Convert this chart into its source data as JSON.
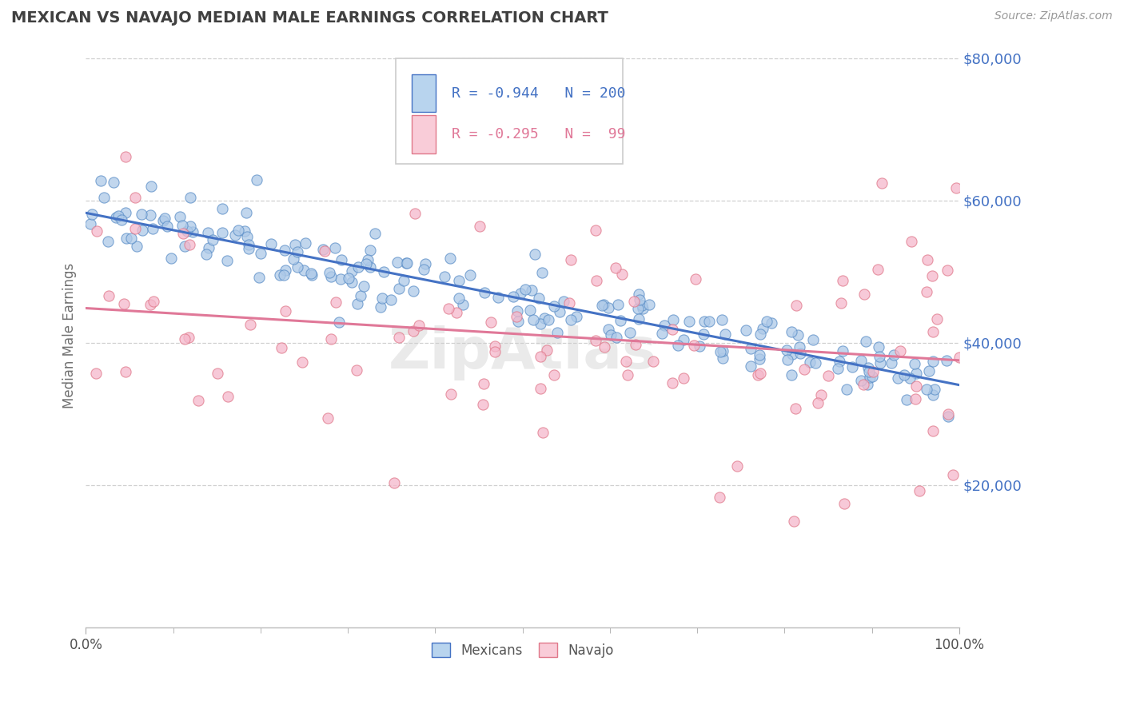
{
  "title": "MEXICAN VS NAVAJO MEDIAN MALE EARNINGS CORRELATION CHART",
  "source_text": "Source: ZipAtlas.com",
  "ylabel": "Median Male Earnings",
  "xlim": [
    0.0,
    1.0
  ],
  "ylim": [
    0,
    82000
  ],
  "yticks": [
    20000,
    40000,
    60000,
    80000
  ],
  "ytick_labels": [
    "$20,000",
    "$40,000",
    "$60,000",
    "$80,000"
  ],
  "xtick_positions": [
    0.0,
    1.0
  ],
  "xtick_labels": [
    "0.0%",
    "100.0%"
  ],
  "blue_fill": "#adc9e8",
  "blue_edge": "#5b8ec7",
  "pink_fill": "#f5b8cb",
  "pink_edge": "#e0788a",
  "blue_line_color": "#4472c4",
  "pink_line_color": "#e07898",
  "legend_blue_fill": "#b8d4ee",
  "legend_pink_fill": "#f9ccd8",
  "title_color": "#404040",
  "axis_label_color": "#707070",
  "tick_color_y": "#4472c4",
  "tick_color_x": "#505050",
  "grid_color": "#d0d0d0",
  "bg_color": "#ffffff",
  "watermark": "ZipAtlas",
  "blue_intercept": 58000,
  "blue_slope": -24000,
  "blue_noise": 2500,
  "pink_intercept": 46000,
  "pink_slope": -8000,
  "pink_noise": 10000,
  "blue_n": 200,
  "pink_n": 99,
  "seed": 42
}
